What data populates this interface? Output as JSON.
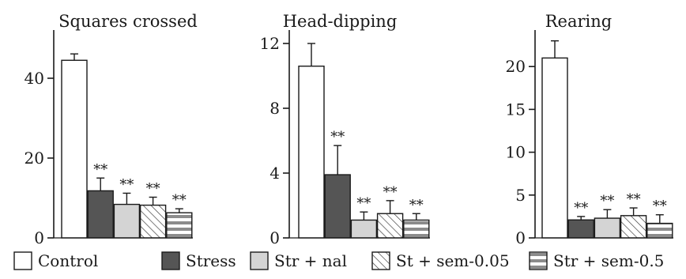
{
  "chart_data": [
    {
      "type": "bar",
      "title": "Squares crossed",
      "categories": [
        "Control",
        "Stress",
        "Str + nal",
        "St + sem-0.05",
        "Str + sem-0.5"
      ],
      "values": [
        44.5,
        11.8,
        8.4,
        8.2,
        6.3
      ],
      "errors": [
        1.6,
        3.2,
        2.8,
        2.0,
        1.0
      ],
      "significance": [
        "",
        "**",
        "**",
        "**",
        "**"
      ],
      "ylim": [
        0,
        50
      ],
      "yticks": [
        "0",
        "20",
        "40"
      ],
      "ytick_values": [
        0,
        20,
        40
      ]
    },
    {
      "type": "bar",
      "title": "Head-dipping",
      "categories": [
        "Control",
        "Stress",
        "Str + nal",
        "St + sem-0.05",
        "Str + sem-0.5"
      ],
      "values": [
        10.6,
        3.9,
        1.1,
        1.5,
        1.1
      ],
      "errors": [
        1.4,
        1.8,
        0.5,
        0.8,
        0.4
      ],
      "significance": [
        "",
        "**",
        "**",
        "**",
        "**"
      ],
      "ylim": [
        0,
        12.5
      ],
      "yticks": [
        "0",
        "4",
        "8",
        "12"
      ],
      "ytick_values": [
        0,
        4,
        8,
        12
      ]
    },
    {
      "type": "bar",
      "title": "Rearing",
      "categories": [
        "Control",
        "Stress",
        "Str + nal",
        "St + sem-0.05",
        "Str + sem-0.5"
      ],
      "values": [
        21.0,
        2.1,
        2.3,
        2.6,
        1.7
      ],
      "errors": [
        2.0,
        0.4,
        1.0,
        0.9,
        1.0
      ],
      "significance": [
        "",
        "**",
        "**",
        "**",
        "**"
      ],
      "ylim": [
        0,
        24
      ],
      "yticks": [
        "0",
        "5",
        "10",
        "15",
        "20"
      ],
      "ytick_values": [
        0,
        5,
        10,
        15,
        20
      ]
    }
  ],
  "legend": [
    {
      "label": "Control",
      "pattern": "white"
    },
    {
      "label": "Stress",
      "pattern": "dark"
    },
    {
      "label": "Str + nal",
      "pattern": "light-gray"
    },
    {
      "label": "St + sem-0.05",
      "pattern": "hatched"
    },
    {
      "label": "Str + sem-0.5",
      "pattern": "horizontal-stripes"
    }
  ],
  "colors": {
    "dark": "#555555",
    "light_gray": "#d4d4d4",
    "stripe": "#8c8c8c",
    "axis": "#1a1a1a"
  }
}
